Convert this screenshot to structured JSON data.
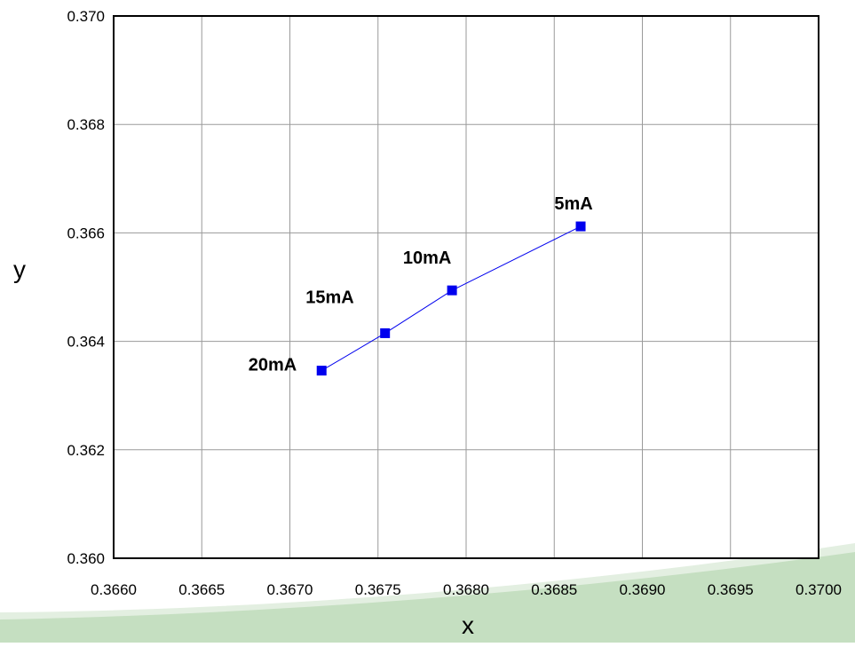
{
  "chart_data": {
    "type": "scatter",
    "title": "",
    "xlabel": "x",
    "ylabel": "y",
    "xlim": [
      0.366,
      0.37
    ],
    "ylim": [
      0.36,
      0.37
    ],
    "xticks": [
      "0.3660",
      "0.3665",
      "0.3670",
      "0.3675",
      "0.3680",
      "0.3685",
      "0.3690",
      "0.3695",
      "0.3700"
    ],
    "yticks": [
      "0.360",
      "0.362",
      "0.364",
      "0.366",
      "0.368",
      "0.370"
    ],
    "grid": true,
    "series": [
      {
        "color": "#0000ee",
        "marker": "square",
        "connected": true,
        "points": [
          {
            "x": 0.36718,
            "y": 0.36346,
            "label": "20mA"
          },
          {
            "x": 0.36754,
            "y": 0.36415,
            "label": "15mA"
          },
          {
            "x": 0.36792,
            "y": 0.36494,
            "label": "10mA"
          },
          {
            "x": 0.36865,
            "y": 0.36612,
            "label": "5mA"
          }
        ]
      }
    ]
  },
  "decoration": {
    "swoosh_color": "#c5dfc1",
    "swoosh_color_light": "#e3efe1"
  }
}
